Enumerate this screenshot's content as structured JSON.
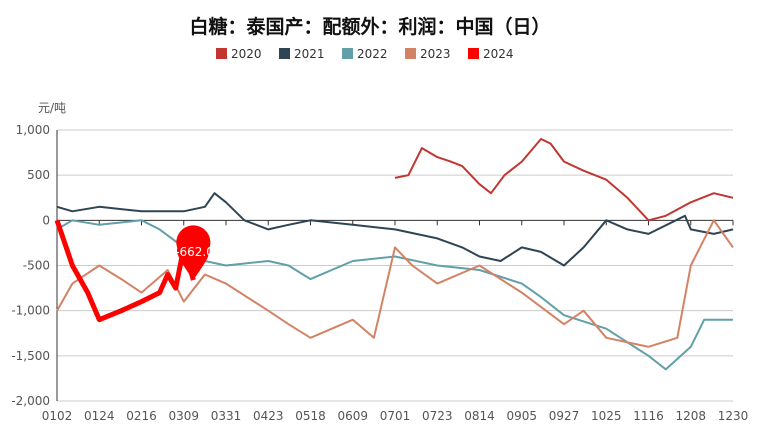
{
  "chart_data": {
    "type": "line",
    "title": "白糖：泰国产：配额外：利润：中国（日）",
    "ylabel": "元/吨",
    "ylim": [
      -2000,
      1000
    ],
    "yticks": [
      -2000,
      -1500,
      -1000,
      -500,
      0,
      500,
      1000
    ],
    "ytick_labels": [
      "-2,000",
      "-1,500",
      "-1,000",
      "-500",
      "0",
      "500",
      "1,000"
    ],
    "xticks": [
      "0102",
      "0124",
      "0216",
      "0309",
      "0331",
      "0423",
      "0518",
      "0609",
      "0701",
      "0723",
      "0814",
      "0905",
      "0927",
      "1025",
      "1116",
      "1208",
      "1230"
    ],
    "grid": true,
    "legend": "top",
    "annotation": {
      "text": "-662.00",
      "x": "0314",
      "y": -662
    },
    "series": [
      {
        "name": "2020",
        "color": "#c23531",
        "points": [
          [
            "0701",
            470
          ],
          [
            "0708",
            500
          ],
          [
            "0715",
            800
          ],
          [
            "0723",
            700
          ],
          [
            "0730",
            650
          ],
          [
            "0805",
            600
          ],
          [
            "0814",
            400
          ],
          [
            "0820",
            300
          ],
          [
            "0827",
            500
          ],
          [
            "0905",
            650
          ],
          [
            "0915",
            900
          ],
          [
            "0920",
            850
          ],
          [
            "0927",
            650
          ],
          [
            "1010",
            550
          ],
          [
            "1025",
            450
          ],
          [
            "1105",
            250
          ],
          [
            "1116",
            0
          ],
          [
            "1125",
            50
          ],
          [
            "1208",
            200
          ],
          [
            "1220",
            300
          ],
          [
            "1230",
            250
          ]
        ]
      },
      {
        "name": "2021",
        "color": "#2f4554",
        "points": [
          [
            "0102",
            150
          ],
          [
            "0110",
            100
          ],
          [
            "0124",
            150
          ],
          [
            "0216",
            100
          ],
          [
            "0309",
            100
          ],
          [
            "0320",
            150
          ],
          [
            "0325",
            300
          ],
          [
            "0331",
            200
          ],
          [
            "0410",
            0
          ],
          [
            "0423",
            -100
          ],
          [
            "0505",
            -50
          ],
          [
            "0518",
            0
          ],
          [
            "0609",
            -50
          ],
          [
            "0701",
            -100
          ],
          [
            "0723",
            -200
          ],
          [
            "0805",
            -300
          ],
          [
            "0814",
            -400
          ],
          [
            "0825",
            -450
          ],
          [
            "0905",
            -300
          ],
          [
            "0915",
            -350
          ],
          [
            "0927",
            -500
          ],
          [
            "1010",
            -300
          ],
          [
            "1025",
            0
          ],
          [
            "1105",
            -100
          ],
          [
            "1116",
            -150
          ],
          [
            "1205",
            50
          ],
          [
            "1208",
            -100
          ],
          [
            "1220",
            -150
          ],
          [
            "1230",
            -100
          ]
        ]
      },
      {
        "name": "2022",
        "color": "#61a0a8",
        "points": [
          [
            "0102",
            -100
          ],
          [
            "0110",
            0
          ],
          [
            "0124",
            -50
          ],
          [
            "0216",
            0
          ],
          [
            "0225",
            -100
          ],
          [
            "0309",
            -300
          ],
          [
            "0320",
            -450
          ],
          [
            "0331",
            -500
          ],
          [
            "0423",
            -450
          ],
          [
            "0505",
            -500
          ],
          [
            "0518",
            -650
          ],
          [
            "0609",
            -450
          ],
          [
            "0701",
            -400
          ],
          [
            "0723",
            -500
          ],
          [
            "0814",
            -550
          ],
          [
            "0905",
            -700
          ],
          [
            "0915",
            -850
          ],
          [
            "0927",
            -1050
          ],
          [
            "1025",
            -1200
          ],
          [
            "1105",
            -1350
          ],
          [
            "1116",
            -1500
          ],
          [
            "1125",
            -1650
          ],
          [
            "1208",
            -1400
          ],
          [
            "1215",
            -1100
          ],
          [
            "1230",
            -1100
          ]
        ]
      },
      {
        "name": "2023",
        "color": "#d48265",
        "points": [
          [
            "0102",
            -1000
          ],
          [
            "0110",
            -700
          ],
          [
            "0124",
            -500
          ],
          [
            "0205",
            -650
          ],
          [
            "0216",
            -800
          ],
          [
            "0301",
            -550
          ],
          [
            "0309",
            -900
          ],
          [
            "0320",
            -600
          ],
          [
            "0331",
            -700
          ],
          [
            "0423",
            -1000
          ],
          [
            "0505",
            -1150
          ],
          [
            "0518",
            -1300
          ],
          [
            "0609",
            -1100
          ],
          [
            "0620",
            -1300
          ],
          [
            "0701",
            -300
          ],
          [
            "0710",
            -500
          ],
          [
            "0723",
            -700
          ],
          [
            "0814",
            -500
          ],
          [
            "0905",
            -800
          ],
          [
            "0927",
            -1150
          ],
          [
            "1010",
            -1000
          ],
          [
            "1025",
            -1300
          ],
          [
            "1116",
            -1400
          ],
          [
            "1201",
            -1300
          ],
          [
            "1208",
            -500
          ],
          [
            "1220",
            0
          ],
          [
            "1230",
            -300
          ]
        ]
      },
      {
        "name": "2024",
        "color": "#ff0000",
        "points": [
          [
            "0102",
            0
          ],
          [
            "0110",
            -500
          ],
          [
            "0118",
            -800
          ],
          [
            "0124",
            -1100
          ],
          [
            "0205",
            -1000
          ],
          [
            "0216",
            -900
          ],
          [
            "0225",
            -800
          ],
          [
            "0301",
            -600
          ],
          [
            "0305",
            -750
          ],
          [
            "0309",
            -300
          ],
          [
            "0314",
            -662
          ]
        ]
      }
    ]
  }
}
